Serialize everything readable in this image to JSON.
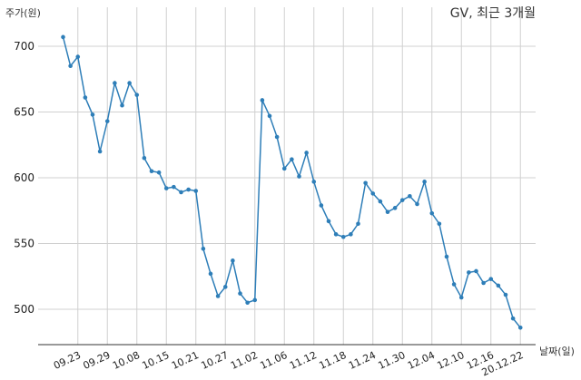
{
  "chart_data": {
    "type": "line",
    "title": "GV, 최근 3개월",
    "xlabel": "날짜(일)",
    "ylabel": "주가(원)",
    "ylim": [
      478,
      726
    ],
    "yticks": [
      500,
      550,
      600,
      650,
      700
    ],
    "grid": true,
    "legend": "none",
    "line_color": "#2e7eb8",
    "grid_color": "#d0d0d0",
    "x_tick_labels": [
      "09.23",
      "09.29",
      "10.08",
      "10.15",
      "10.21",
      "10.27",
      "11.02",
      "11.06",
      "11.12",
      "11.18",
      "11.24",
      "11.30",
      "12.04",
      "12.10",
      "12.16",
      "20.12.22"
    ],
    "x_tick_positions": [
      2,
      6,
      10,
      14,
      18,
      22,
      26,
      30,
      34,
      38,
      42,
      46,
      50,
      54,
      58,
      62
    ],
    "series": [
      {
        "values": [
          707,
          685,
          692,
          661,
          648,
          620,
          643,
          672,
          655,
          672,
          663,
          615,
          605,
          604,
          592,
          593,
          589,
          591,
          590,
          546,
          527,
          510,
          517,
          537,
          512,
          505,
          507,
          659,
          647,
          631,
          607,
          614,
          601,
          619,
          597,
          579,
          567,
          557,
          555,
          557,
          565,
          596,
          588,
          582,
          574,
          577,
          583,
          586,
          580,
          597,
          573,
          565,
          540,
          519,
          509,
          528,
          529,
          520,
          523,
          518,
          511,
          493,
          486
        ]
      }
    ]
  }
}
